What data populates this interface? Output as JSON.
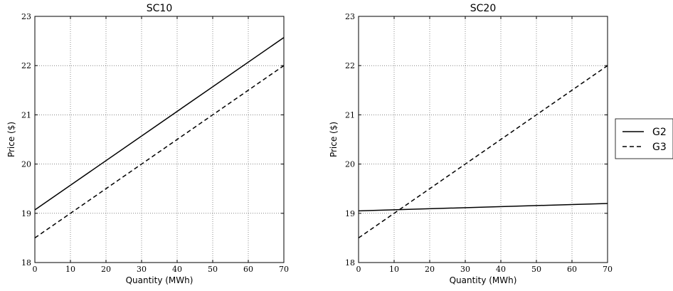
{
  "chart_data": [
    {
      "type": "line",
      "title": "SC10",
      "xlabel": "Quantity (MWh)",
      "ylabel": "Price ($)",
      "xlim": [
        0,
        70
      ],
      "ylim": [
        18,
        23
      ],
      "xticks": [
        0,
        10,
        20,
        30,
        40,
        50,
        60,
        70
      ],
      "yticks": [
        18,
        19,
        20,
        21,
        22,
        23
      ],
      "grid": true,
      "series": [
        {
          "name": "G2",
          "style": "solid",
          "x": [
            0,
            70
          ],
          "y": [
            19.07,
            22.57
          ]
        },
        {
          "name": "G3",
          "style": "dashed",
          "x": [
            0,
            70
          ],
          "y": [
            18.5,
            22.0
          ]
        }
      ]
    },
    {
      "type": "line",
      "title": "SC20",
      "xlabel": "Quantity (MWh)",
      "ylabel": "Price ($)",
      "xlim": [
        0,
        70
      ],
      "ylim": [
        18,
        23
      ],
      "xticks": [
        0,
        10,
        20,
        30,
        40,
        50,
        60,
        70
      ],
      "yticks": [
        18,
        19,
        20,
        21,
        22,
        23
      ],
      "grid": true,
      "series": [
        {
          "name": "G2",
          "style": "solid",
          "x": [
            0,
            70
          ],
          "y": [
            19.05,
            19.2
          ]
        },
        {
          "name": "G3",
          "style": "dashed",
          "x": [
            0,
            70
          ],
          "y": [
            18.5,
            22.0
          ]
        }
      ]
    }
  ],
  "legend": {
    "placement": "right",
    "entries": [
      {
        "label": "G2",
        "style": "solid"
      },
      {
        "label": "G3",
        "style": "dashed"
      }
    ]
  },
  "colors": {
    "line": "#000000",
    "background": "#ffffff"
  }
}
